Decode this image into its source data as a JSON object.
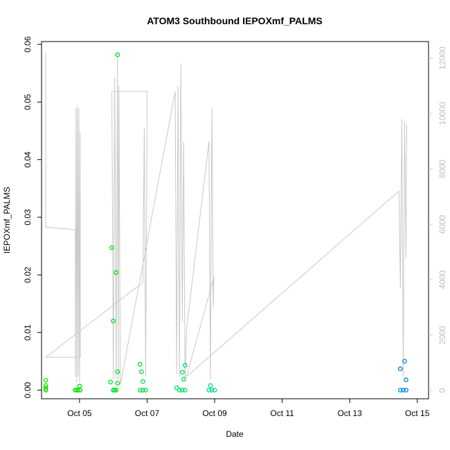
{
  "chart_data": {
    "type": "scatter",
    "title": "ATOM3 Southbound IEPOXmf_PALMS",
    "xlabel": "Date",
    "ylabel": "IEPOXmf_PALMS",
    "x_ticks": [
      "Oct 05",
      "Oct 07",
      "Oct 09",
      "Oct 11",
      "Oct 13",
      "Oct 15"
    ],
    "xlim": [
      "2017-10-03T21:00",
      "2017-10-15T08:00"
    ],
    "ylim": [
      -0.0015,
      0.0605
    ],
    "y_ticks": [
      "0.00",
      "0.01",
      "0.02",
      "0.03",
      "0.04",
      "0.05",
      "0.06"
    ],
    "y2lim": [
      -300,
      12600
    ],
    "y2_ticks": [
      "0",
      "2000",
      "4000",
      "6000",
      "8000",
      "10000",
      "12000"
    ],
    "grid": false,
    "series": [
      {
        "kind": "points",
        "values": [
          [
            "2017-10-04T00:00",
            0.0017
          ],
          [
            "2017-10-04T00:00",
            0.0008
          ],
          [
            "2017-10-04T00:00",
            0.0004
          ],
          [
            "2017-10-04T00:00",
            0.0001
          ],
          [
            "2017-10-04T00:00",
            0.0
          ],
          [
            "2017-10-04T21:00",
            0.0
          ],
          [
            "2017-10-04T22:00",
            0.0
          ],
          [
            "2017-10-04T23:00",
            0.0
          ],
          [
            "2017-10-05T00:00",
            0.0007
          ],
          [
            "2017-10-05T00:30",
            0.0
          ],
          [
            "2017-10-05T22:00",
            0.0014
          ],
          [
            "2017-10-05T23:00",
            0.0247
          ],
          [
            "2017-10-06T00:00",
            0.012
          ],
          [
            "2017-10-06T02:00",
            0.0204
          ],
          [
            "2017-10-06T03:00",
            0.0582
          ],
          [
            "2017-10-06T03:00",
            0.0032
          ],
          [
            "2017-10-06T03:00",
            0.0012
          ],
          [
            "2017-10-06T00:00",
            0.0
          ],
          [
            "2017-10-06T01:00",
            0.0
          ],
          [
            "2017-10-06T02:00",
            0.0
          ],
          [
            "2017-10-06T19:00",
            0.0045
          ],
          [
            "2017-10-06T20:00",
            0.0032
          ],
          [
            "2017-10-06T21:00",
            0.0015
          ],
          [
            "2017-10-06T19:00",
            0.0
          ],
          [
            "2017-10-06T21:00",
            0.0
          ],
          [
            "2017-10-06T23:00",
            0.0
          ],
          [
            "2017-10-08T01:00",
            0.0031
          ],
          [
            "2017-10-08T03:00",
            0.0043
          ],
          [
            "2017-10-08T02:00",
            0.0019
          ],
          [
            "2017-10-07T21:00",
            0.0004
          ],
          [
            "2017-10-07T23:00",
            0.0
          ],
          [
            "2017-10-08T01:00",
            0.0
          ],
          [
            "2017-10-08T03:00",
            0.0
          ],
          [
            "2017-10-08T21:00",
            0.0008
          ],
          [
            "2017-10-08T20:00",
            0.0
          ],
          [
            "2017-10-08T22:00",
            0.0
          ],
          [
            "2017-10-09T00:00",
            0.0
          ],
          [
            "2017-10-14T12:00",
            0.0037
          ],
          [
            "2017-10-14T15:00",
            0.005
          ],
          [
            "2017-10-14T16:00",
            0.0018
          ],
          [
            "2017-10-14T12:00",
            0.0
          ],
          [
            "2017-10-14T14:00",
            0.0
          ],
          [
            "2017-10-14T16:00",
            0.0
          ]
        ]
      },
      {
        "kind": "line",
        "axis": "right",
        "values": [
          [
            "2017-10-04T00:00",
            6000
          ],
          [
            "2017-10-04T00:00",
            12200
          ],
          [
            "2017-10-04T00:00",
            6000
          ],
          [
            "2017-10-04T00:00",
            5900
          ],
          [
            "2017-10-04T21:00",
            5800
          ],
          [
            "2017-10-04T21:00",
            500
          ],
          [
            "2017-10-04T21:30",
            10200
          ],
          [
            "2017-10-04T22:00",
            300
          ],
          [
            "2017-10-04T22:30",
            10300
          ],
          [
            "2017-10-04T23:00",
            500
          ],
          [
            "2017-10-04T23:30",
            10200
          ],
          [
            "2017-10-05T00:00",
            300
          ],
          [
            "2017-10-05T00:30",
            9300
          ],
          [
            "2017-10-05T00:30",
            1200
          ],
          [
            "2017-10-04T00:00",
            1200
          ],
          [
            "2017-10-06T21:00",
            3900
          ],
          [
            "2017-10-06T22:00",
            9500
          ],
          [
            "2017-10-06T23:00",
            500
          ],
          [
            "2017-10-07T00:00",
            10000
          ],
          [
            "2017-10-07T00:00",
            10800
          ],
          [
            "2017-10-05T23:00",
            10800
          ],
          [
            "2017-10-06T00:00",
            400
          ],
          [
            "2017-10-06T01:00",
            11300
          ],
          [
            "2017-10-06T02:00",
            400
          ],
          [
            "2017-10-06T03:00",
            12200
          ],
          [
            "2017-10-06T03:30",
            400
          ],
          [
            "2017-10-06T04:00",
            11000
          ],
          [
            "2017-10-06T05:00",
            200
          ],
          [
            "2017-10-07T20:00",
            10800
          ],
          [
            "2017-10-07T21:00",
            600
          ],
          [
            "2017-10-07T22:00",
            11000
          ],
          [
            "2017-10-07T23:00",
            500
          ],
          [
            "2017-10-08T00:00",
            11800
          ],
          [
            "2017-10-08T01:00",
            2500
          ],
          [
            "2017-10-08T02:00",
            9000
          ],
          [
            "2017-10-08T03:00",
            300
          ],
          [
            "2017-10-08T04:00",
            2200
          ],
          [
            "2017-10-08T20:00",
            9000
          ],
          [
            "2017-10-08T21:00",
            400
          ],
          [
            "2017-10-08T22:00",
            10200
          ],
          [
            "2017-10-08T23:00",
            3000
          ],
          [
            "2017-10-08T23:30",
            4100
          ],
          [
            "2017-10-08T04:00",
            500
          ],
          [
            "2017-10-14T11:00",
            7200
          ],
          [
            "2017-10-14T12:00",
            3700
          ],
          [
            "2017-10-14T13:00",
            9800
          ],
          [
            "2017-10-14T14:00",
            500
          ],
          [
            "2017-10-14T15:00",
            9700
          ],
          [
            "2017-10-14T16:00",
            4800
          ],
          [
            "2017-10-14T16:30",
            9600
          ]
        ]
      }
    ]
  }
}
